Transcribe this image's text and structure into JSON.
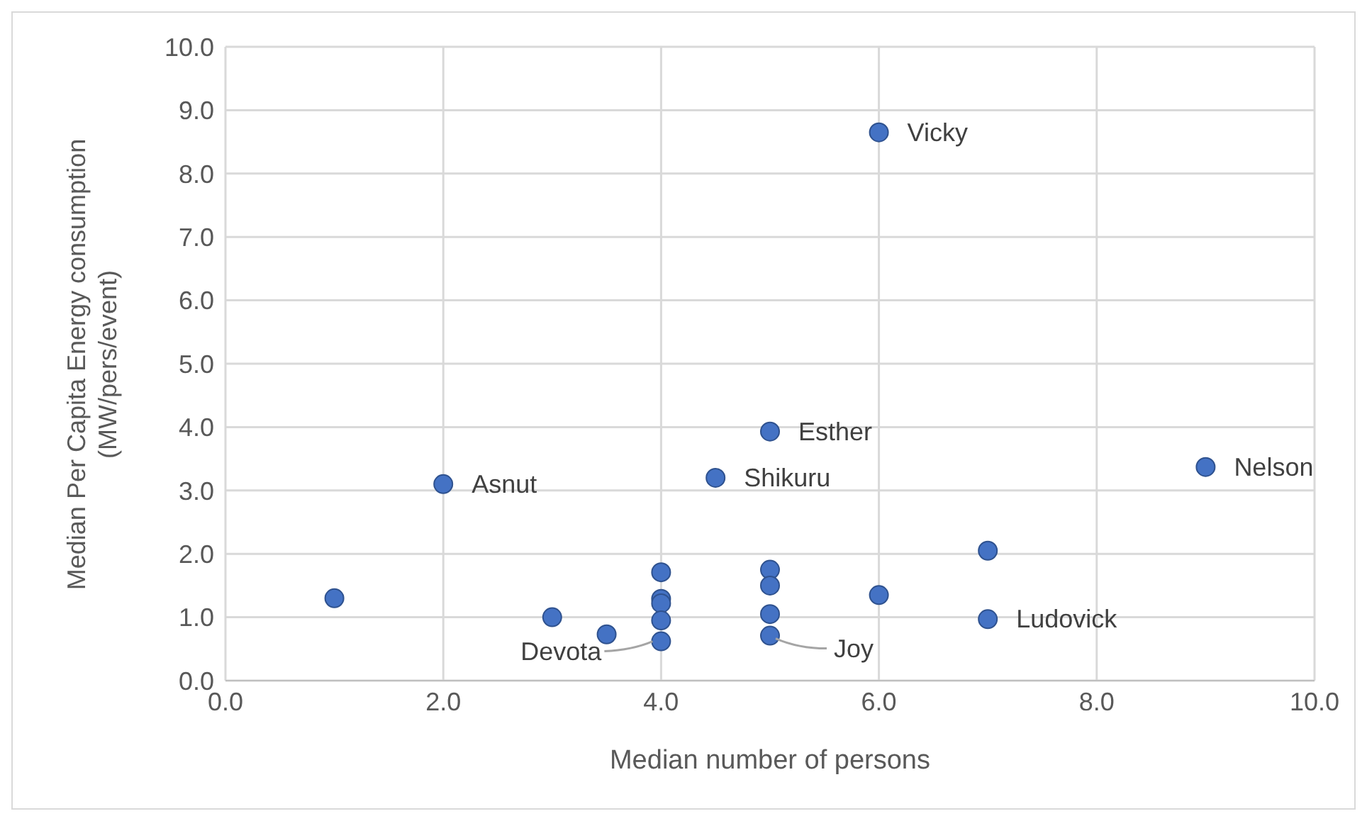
{
  "chart_data": {
    "type": "scatter",
    "xlabel": "Median number of persons",
    "ylabel": "Median Per Capita Energy consumption (MW/pers/event)",
    "x": [
      1.0,
      2.0,
      3.0,
      3.5,
      4.0,
      4.0,
      4.0,
      4.0,
      4.0,
      4.5,
      5.0,
      5.0,
      5.0,
      5.0,
      5.0,
      6.0,
      6.0,
      7.0,
      7.0,
      9.0
    ],
    "series": [
      {
        "color": "#4472c4",
        "values": [
          1.3,
          3.1,
          1.0,
          0.73,
          1.71,
          1.29,
          1.22,
          0.95,
          0.62,
          3.2,
          3.93,
          1.75,
          1.5,
          1.05,
          0.71,
          8.65,
          1.35,
          2.05,
          0.97,
          3.37
        ]
      }
    ],
    "xlim": [
      0,
      10
    ],
    "ylim": [
      0,
      10
    ],
    "xticks": [
      {
        "value": 0,
        "label": "0.0"
      },
      {
        "value": 2,
        "label": "2.0"
      },
      {
        "value": 4,
        "label": "4.0"
      },
      {
        "value": 6,
        "label": "6.0"
      },
      {
        "value": 8,
        "label": "8.0"
      },
      {
        "value": 10,
        "label": "10.0"
      }
    ],
    "yticks": [
      {
        "value": 0,
        "label": "0.0"
      },
      {
        "value": 1,
        "label": "1.0"
      },
      {
        "value": 2,
        "label": "2.0"
      },
      {
        "value": 3,
        "label": "3.0"
      },
      {
        "value": 4,
        "label": "4.0"
      },
      {
        "value": 5,
        "label": "5.0"
      },
      {
        "value": 6,
        "label": "6.0"
      },
      {
        "value": 7,
        "label": "7.0"
      },
      {
        "value": 8,
        "label": "8.0"
      },
      {
        "value": 9,
        "label": "9.0"
      },
      {
        "value": 10,
        "label": "10.0"
      }
    ],
    "grid": true,
    "marker": "circle",
    "legend": false,
    "annotations": [
      {
        "text": "Vicky",
        "x": 6.0,
        "y": 8.65
      },
      {
        "text": "Esther",
        "x": 5.0,
        "y": 3.93
      },
      {
        "text": "Shikuru",
        "x": 4.5,
        "y": 3.2
      },
      {
        "text": "Asnut",
        "x": 2.0,
        "y": 3.1
      },
      {
        "text": "Nelson",
        "x": 9.0,
        "y": 3.37
      },
      {
        "text": "Ludovick",
        "x": 7.0,
        "y": 0.97
      },
      {
        "text": "Devota",
        "x": 4.0,
        "y": 0.62
      },
      {
        "text": "Joy",
        "x": 5.0,
        "y": 0.71
      }
    ]
  }
}
